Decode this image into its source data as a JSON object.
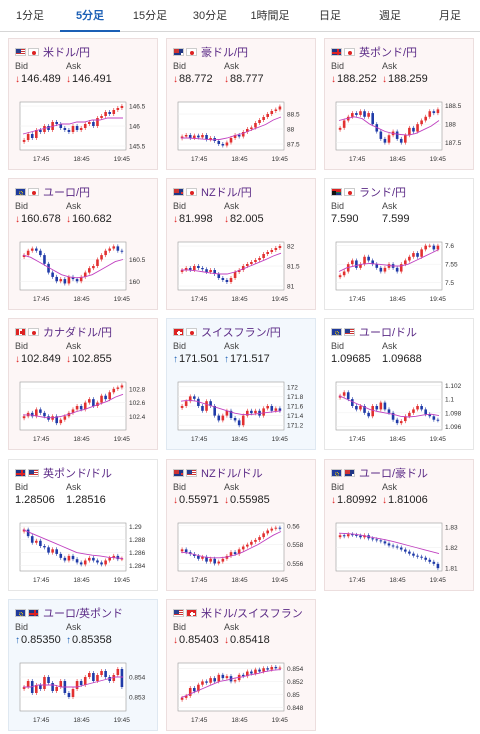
{
  "tabs": [
    "1分足",
    "5分足",
    "15分足",
    "30分足",
    "1時間足",
    "日足",
    "週足",
    "月足"
  ],
  "active_tab": 1,
  "labels": {
    "bid": "Bid",
    "ask": "Ask"
  },
  "pairs": [
    {
      "name": "米ドル/円",
      "flags": [
        "US",
        "JP"
      ],
      "trend": "down",
      "bid": "146.489",
      "ask": "146.491",
      "bid_dir": "down",
      "ask_dir": "down",
      "yticks": [
        "146.5",
        "146",
        "145.5"
      ],
      "xticks": [
        "17:45",
        "18:45",
        "19:45"
      ],
      "ylim": [
        145.4,
        146.6
      ],
      "values": [
        145.65,
        145.8,
        145.7,
        145.9,
        145.85,
        146.0,
        145.9,
        146.1,
        146.05,
        145.95,
        145.9,
        145.85,
        146.0,
        145.9,
        145.95,
        146.05,
        146.1,
        146.0,
        146.2,
        146.25,
        146.35,
        146.3,
        146.4,
        146.45,
        146.5
      ],
      "ma": [
        145.8,
        145.85,
        145.9,
        145.95,
        146.0,
        146.05,
        146.05,
        146.1,
        146.1,
        146.15,
        146.15,
        146.2,
        146.2,
        146.2
      ]
    },
    {
      "name": "豪ドル/円",
      "flags": [
        "AU",
        "JP"
      ],
      "trend": "down",
      "bid": "88.772",
      "ask": "88.777",
      "bid_dir": "down",
      "ask_dir": "down",
      "yticks": [
        "88.5",
        "88",
        "87.5"
      ],
      "xticks": [
        "17:45",
        "18:45",
        "19:45"
      ],
      "ylim": [
        87.3,
        88.9
      ],
      "values": [
        87.75,
        87.8,
        87.7,
        87.78,
        87.72,
        87.8,
        87.65,
        87.7,
        87.6,
        87.5,
        87.45,
        87.55,
        87.7,
        87.8,
        87.75,
        87.9,
        88.0,
        88.05,
        88.2,
        88.3,
        88.4,
        88.5,
        88.6,
        88.65,
        88.75
      ],
      "ma": [
        87.7,
        87.7,
        87.68,
        87.66,
        87.64,
        87.65,
        87.7,
        87.78,
        87.85,
        87.95,
        88.05,
        88.15,
        88.3,
        88.4
      ]
    },
    {
      "name": "英ポンド/円",
      "flags": [
        "GB",
        "JP"
      ],
      "trend": "down",
      "bid": "188.252",
      "ask": "188.259",
      "bid_dir": "down",
      "ask_dir": "down",
      "yticks": [
        "188.5",
        "188",
        "187.5"
      ],
      "xticks": [
        "17:45",
        "18:45",
        "19:45"
      ],
      "ylim": [
        187.3,
        188.6
      ],
      "values": [
        187.9,
        188.1,
        188.2,
        188.3,
        188.25,
        188.35,
        188.2,
        188.3,
        188.0,
        187.8,
        187.6,
        187.5,
        187.7,
        187.8,
        187.6,
        187.5,
        187.7,
        187.9,
        187.8,
        188.0,
        188.1,
        188.2,
        188.35,
        188.3,
        188.4
      ],
      "ma": [
        188.1,
        188.15,
        188.2,
        188.15,
        188.0,
        187.9,
        187.8,
        187.75,
        187.72,
        187.7,
        187.75,
        187.85,
        187.95,
        188.1
      ]
    },
    {
      "name": "ユーロ/円",
      "flags": [
        "EU",
        "JP"
      ],
      "trend": "down",
      "bid": "160.678",
      "ask": "160.682",
      "bid_dir": "down",
      "ask_dir": "down",
      "yticks": [
        "160.5",
        "160"
      ],
      "xticks": [
        "17:45",
        "18:45",
        "19:45"
      ],
      "ylim": [
        159.8,
        160.9
      ],
      "values": [
        160.6,
        160.7,
        160.75,
        160.7,
        160.6,
        160.4,
        160.2,
        160.1,
        160.0,
        160.05,
        159.95,
        160.1,
        160.05,
        160.0,
        160.1,
        160.2,
        160.3,
        160.35,
        160.5,
        160.6,
        160.7,
        160.75,
        160.8,
        160.7,
        160.68
      ],
      "ma": [
        160.6,
        160.55,
        160.45,
        160.35,
        160.25,
        160.15,
        160.1,
        160.08,
        160.1,
        160.15,
        160.25,
        160.35,
        160.45,
        160.5
      ]
    },
    {
      "name": "NZドル/円",
      "flags": [
        "NZ",
        "JP"
      ],
      "trend": "down",
      "bid": "81.998",
      "ask": "82.005",
      "bid_dir": "down",
      "ask_dir": "down",
      "yticks": [
        "82",
        "81.5",
        "81"
      ],
      "xticks": [
        "17:45",
        "18:45",
        "19:45"
      ],
      "ylim": [
        80.9,
        82.1
      ],
      "values": [
        81.4,
        81.45,
        81.4,
        81.5,
        81.45,
        81.42,
        81.35,
        81.4,
        81.3,
        81.2,
        81.15,
        81.1,
        81.2,
        81.35,
        81.4,
        81.5,
        81.55,
        81.6,
        81.65,
        81.7,
        81.8,
        81.85,
        81.9,
        81.95,
        82.0
      ],
      "ma": [
        81.4,
        81.4,
        81.38,
        81.35,
        81.32,
        81.3,
        81.3,
        81.35,
        81.42,
        81.5,
        81.58,
        81.66,
        81.75,
        81.82
      ]
    },
    {
      "name": "ランド/円",
      "flags": [
        "ZA",
        "JP"
      ],
      "trend": "flat",
      "bid": "7.590",
      "ask": "7.599",
      "bid_dir": "",
      "ask_dir": "",
      "yticks": [
        "7.6",
        "7.55",
        "7.5"
      ],
      "xticks": [
        "17:45",
        "18:45",
        "19:45"
      ],
      "ylim": [
        7.48,
        7.61
      ],
      "values": [
        7.52,
        7.53,
        7.55,
        7.56,
        7.54,
        7.55,
        7.57,
        7.56,
        7.55,
        7.54,
        7.53,
        7.54,
        7.55,
        7.54,
        7.53,
        7.55,
        7.56,
        7.57,
        7.58,
        7.57,
        7.59,
        7.6,
        7.6,
        7.59,
        7.6
      ],
      "ma": [
        7.53,
        7.54,
        7.545,
        7.55,
        7.552,
        7.55,
        7.548,
        7.545,
        7.545,
        7.55,
        7.56,
        7.57,
        7.58,
        7.59
      ]
    },
    {
      "name": "カナダドル/円",
      "flags": [
        "CA",
        "JP"
      ],
      "trend": "down",
      "bid": "102.849",
      "ask": "102.855",
      "bid_dir": "down",
      "ask_dir": "down",
      "yticks": [
        "102.8",
        "102.6",
        "102.4"
      ],
      "xticks": [
        "17:45",
        "18:45",
        "19:45"
      ],
      "ylim": [
        102.2,
        102.9
      ],
      "values": [
        102.4,
        102.45,
        102.4,
        102.5,
        102.45,
        102.4,
        102.35,
        102.4,
        102.3,
        102.35,
        102.4,
        102.45,
        102.5,
        102.55,
        102.5,
        102.6,
        102.65,
        102.55,
        102.6,
        102.7,
        102.65,
        102.75,
        102.8,
        102.82,
        102.85
      ],
      "ma": [
        102.42,
        102.42,
        102.4,
        102.38,
        102.38,
        102.4,
        102.43,
        102.47,
        102.5,
        102.54,
        102.58,
        102.62,
        102.68,
        102.72
      ]
    },
    {
      "name": "スイスフラン/円",
      "flags": [
        "CH",
        "JP"
      ],
      "trend": "up",
      "bid": "171.501",
      "ask": "171.517",
      "bid_dir": "up",
      "ask_dir": "up",
      "yticks": [
        "172",
        "171.8",
        "171.6",
        "171.4",
        "171.2"
      ],
      "xticks": [
        "17:45",
        "18:45",
        "19:45"
      ],
      "ylim": [
        171.1,
        172.1
      ],
      "values": [
        171.6,
        171.7,
        171.8,
        171.75,
        171.6,
        171.5,
        171.7,
        171.6,
        171.4,
        171.3,
        171.4,
        171.5,
        171.35,
        171.3,
        171.2,
        171.4,
        171.5,
        171.45,
        171.5,
        171.4,
        171.55,
        171.6,
        171.5,
        171.55,
        171.5
      ],
      "ma": [
        171.7,
        171.72,
        171.7,
        171.65,
        171.6,
        171.55,
        171.5,
        171.45,
        171.42,
        171.42,
        171.44,
        171.46,
        171.48,
        171.5
      ]
    },
    {
      "name": "ユーロ/ドル",
      "flags": [
        "EU",
        "US"
      ],
      "trend": "flat",
      "bid": "1.09685",
      "ask": "1.09688",
      "bid_dir": "",
      "ask_dir": "",
      "yticks": [
        "1.102",
        "1.1",
        "1.098",
        "1.096"
      ],
      "xticks": [
        "17:45",
        "18:45",
        "19:45"
      ],
      "ylim": [
        1.0955,
        1.1025
      ],
      "values": [
        1.1005,
        1.101,
        1.1,
        1.099,
        1.0985,
        1.099,
        1.098,
        1.0975,
        1.099,
        1.0985,
        1.0995,
        1.0985,
        1.098,
        1.097,
        1.0965,
        1.0968,
        1.0975,
        1.098,
        1.0985,
        1.099,
        1.0985,
        1.0978,
        1.0975,
        1.097,
        1.0969
      ],
      "ma": [
        1.1005,
        1.1,
        1.0995,
        1.099,
        1.0985,
        1.0982,
        1.098,
        1.0978,
        1.0975,
        1.0974,
        1.0975,
        1.0977,
        1.0978,
        1.0976
      ]
    },
    {
      "name": "英ポンド/ドル",
      "flags": [
        "GB",
        "US"
      ],
      "trend": "flat",
      "bid": "1.28506",
      "ask": "1.28516",
      "bid_dir": "",
      "ask_dir": "",
      "yticks": [
        "1.29",
        "1.288",
        "1.286",
        "1.284"
      ],
      "xticks": [
        "17:45",
        "18:45",
        "19:45"
      ],
      "ylim": [
        1.2832,
        1.2905
      ],
      "values": [
        1.2895,
        1.2885,
        1.2875,
        1.2878,
        1.287,
        1.2868,
        1.286,
        1.2865,
        1.2858,
        1.2852,
        1.2848,
        1.2855,
        1.285,
        1.2845,
        1.2842,
        1.2848,
        1.2852,
        1.2848,
        1.2845,
        1.2842,
        1.2848,
        1.2852,
        1.2855,
        1.285,
        1.2851
      ],
      "ma": [
        1.2895,
        1.289,
        1.2885,
        1.288,
        1.2875,
        1.287,
        1.2865,
        1.286,
        1.2858,
        1.2856,
        1.2855,
        1.2853,
        1.2852,
        1.2851
      ]
    },
    {
      "name": "NZドル/ドル",
      "flags": [
        "NZ",
        "US"
      ],
      "trend": "down",
      "bid": "0.55971",
      "ask": "0.55985",
      "bid_dir": "down",
      "ask_dir": "down",
      "yticks": [
        "0.56",
        "0.558",
        "0.556"
      ],
      "xticks": [
        "17:45",
        "18:45",
        "19:45"
      ],
      "ylim": [
        0.5552,
        0.5603
      ],
      "values": [
        0.5575,
        0.5572,
        0.557,
        0.5568,
        0.5565,
        0.5567,
        0.5562,
        0.5565,
        0.556,
        0.5562,
        0.5565,
        0.5568,
        0.5572,
        0.557,
        0.5575,
        0.5578,
        0.558,
        0.5583,
        0.5585,
        0.5588,
        0.5592,
        0.5595,
        0.5597,
        0.5598,
        0.5597
      ],
      "ma": [
        0.5572,
        0.5571,
        0.5569,
        0.5567,
        0.5566,
        0.5566,
        0.5567,
        0.5569,
        0.5572,
        0.5576,
        0.558,
        0.5585,
        0.559,
        0.5594
      ]
    },
    {
      "name": "ユーロ/豪ドル",
      "flags": [
        "EU",
        "AU"
      ],
      "trend": "down",
      "bid": "1.80992",
      "ask": "1.81006",
      "bid_dir": "down",
      "ask_dir": "down",
      "yticks": [
        "1.83",
        "1.82",
        "1.81"
      ],
      "xticks": [
        "17:45",
        "18:45",
        "19:45"
      ],
      "ylim": [
        1.8085,
        1.832
      ],
      "values": [
        1.826,
        1.8255,
        1.8265,
        1.8262,
        1.8258,
        1.825,
        1.826,
        1.8245,
        1.824,
        1.8235,
        1.823,
        1.822,
        1.821,
        1.8205,
        1.82,
        1.819,
        1.818,
        1.817,
        1.816,
        1.8155,
        1.815,
        1.814,
        1.813,
        1.812,
        1.8099
      ],
      "ma": [
        1.827,
        1.8268,
        1.8265,
        1.826,
        1.8252,
        1.8245,
        1.8238,
        1.823,
        1.822,
        1.821,
        1.82,
        1.819,
        1.818,
        1.817
      ]
    },
    {
      "name": "ユーロ/英ポンド",
      "flags": [
        "EU",
        "GB"
      ],
      "trend": "up",
      "bid": "0.85350",
      "ask": "0.85358",
      "bid_dir": "up",
      "ask_dir": "up",
      "yticks": [
        "0.854",
        "0.853"
      ],
      "xticks": [
        "17:45",
        "18:45",
        "19:45"
      ],
      "ylim": [
        0.8523,
        0.8547
      ],
      "values": [
        0.8535,
        0.8538,
        0.8532,
        0.8536,
        0.8534,
        0.854,
        0.8537,
        0.8533,
        0.8535,
        0.8538,
        0.8532,
        0.853,
        0.8534,
        0.8538,
        0.8536,
        0.854,
        0.8542,
        0.8538,
        0.8541,
        0.8543,
        0.854,
        0.8538,
        0.8541,
        0.8544,
        0.8535
      ],
      "ma": [
        0.8535,
        0.8535,
        0.8536,
        0.8536,
        0.8536,
        0.8535,
        0.8535,
        0.8535,
        0.8536,
        0.8537,
        0.8538,
        0.8539,
        0.854,
        0.854
      ]
    },
    {
      "name": "米ドル/スイスフラン",
      "flags": [
        "US",
        "CH"
      ],
      "trend": "down",
      "bid": "0.85403",
      "ask": "0.85418",
      "bid_dir": "down",
      "ask_dir": "down",
      "yticks": [
        "0.854",
        "0.852",
        "0.85",
        "0.848"
      ],
      "xticks": [
        "17:45",
        "18:45",
        "19:45"
      ],
      "ylim": [
        0.8475,
        0.8548
      ],
      "values": [
        0.8495,
        0.8498,
        0.851,
        0.8505,
        0.8515,
        0.852,
        0.8518,
        0.8525,
        0.852,
        0.853,
        0.8525,
        0.8528,
        0.852,
        0.8522,
        0.853,
        0.8528,
        0.8535,
        0.8532,
        0.8538,
        0.8535,
        0.854,
        0.8538,
        0.8542,
        0.854,
        0.8541
      ],
      "ma": [
        0.8495,
        0.85,
        0.8505,
        0.851,
        0.8515,
        0.852,
        0.8522,
        0.8525,
        0.8527,
        0.853,
        0.8532,
        0.8535,
        0.8537,
        0.8538
      ]
    }
  ]
}
